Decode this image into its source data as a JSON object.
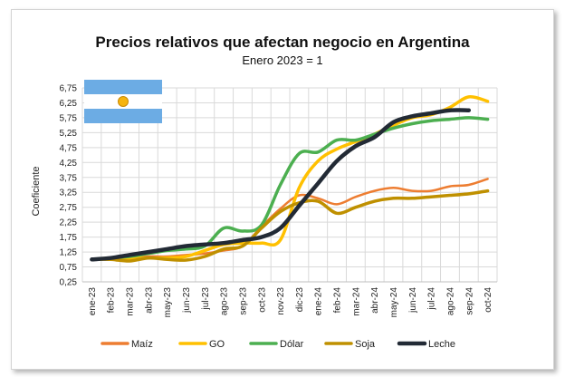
{
  "chart_data": {
    "type": "line",
    "title": "Precios relativos que afectan negocio en Argentina",
    "subtitle": "Enero 2023 = 1",
    "xlabel": "",
    "ylabel": "Coeficiente",
    "ylim": [
      0.25,
      6.75
    ],
    "yticks": [
      "0,25",
      "0,75",
      "1,25",
      "1,75",
      "2,25",
      "2,75",
      "3,25",
      "3,75",
      "4,25",
      "4,75",
      "5,25",
      "5,75",
      "6,25",
      "6,75"
    ],
    "categories": [
      "ene-23",
      "feb-23",
      "mar-23",
      "abr-23",
      "may-23",
      "jun-23",
      "jul-23",
      "ago-23",
      "sep-23",
      "oct-23",
      "nov-23",
      "dic-23",
      "ene-24",
      "feb-24",
      "mar-24",
      "abr-24",
      "may-24",
      "jun-24",
      "jul-24",
      "ago-24",
      "sep-24",
      "oct-24"
    ],
    "grid": true,
    "legend_position": "bottom",
    "series": [
      {
        "name": "Maíz",
        "color": "#ed7d31",
        "values": [
          1.0,
          1.05,
          1.05,
          1.1,
          1.1,
          1.15,
          1.2,
          1.3,
          1.45,
          2.1,
          2.7,
          3.15,
          3.05,
          2.85,
          3.1,
          3.3,
          3.4,
          3.3,
          3.3,
          3.45,
          3.5,
          3.7
        ]
      },
      {
        "name": "GO",
        "color": "#ffc000",
        "values": [
          1.0,
          1.05,
          1.05,
          1.05,
          1.05,
          1.1,
          1.3,
          1.5,
          1.55,
          1.55,
          1.65,
          3.4,
          4.3,
          4.7,
          4.95,
          5.2,
          5.5,
          5.75,
          5.85,
          6.1,
          6.45,
          6.3
        ]
      },
      {
        "name": "Dólar",
        "color": "#4caf50",
        "values": [
          1.0,
          1.05,
          1.1,
          1.2,
          1.3,
          1.35,
          1.45,
          2.05,
          1.95,
          2.15,
          3.5,
          4.55,
          4.6,
          5.0,
          5.0,
          5.2,
          5.4,
          5.55,
          5.65,
          5.7,
          5.75,
          5.7
        ]
      },
      {
        "name": "Soja",
        "color": "#bf9000",
        "values": [
          1.0,
          1.0,
          0.95,
          1.05,
          1.0,
          0.98,
          1.1,
          1.35,
          1.45,
          2.05,
          2.6,
          2.9,
          2.95,
          2.55,
          2.75,
          2.95,
          3.05,
          3.05,
          3.1,
          3.15,
          3.2,
          3.3
        ]
      },
      {
        "name": "Leche",
        "color": "#222a35",
        "values": [
          1.0,
          1.05,
          1.15,
          1.25,
          1.35,
          1.45,
          1.5,
          1.55,
          1.65,
          1.75,
          2.05,
          2.8,
          3.55,
          4.3,
          4.8,
          5.1,
          5.6,
          5.8,
          5.9,
          6.0,
          6.0,
          null
        ]
      }
    ]
  },
  "flag": {
    "colors": {
      "celeste": "#6cace4",
      "white": "#ffffff",
      "sun": "#f6b40e"
    }
  }
}
